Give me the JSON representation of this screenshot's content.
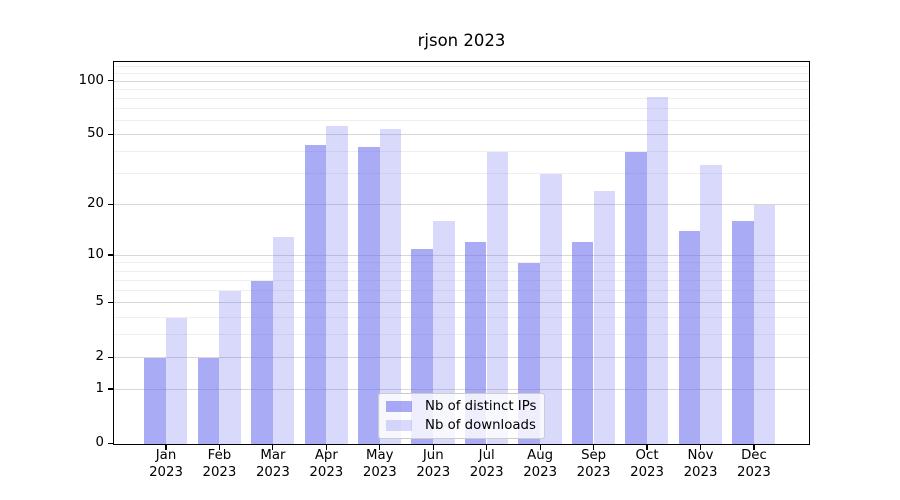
{
  "title": "rjson 2023",
  "chart_data": {
    "type": "bar",
    "title": "rjson 2023",
    "categories": [
      "Jan 2023",
      "Feb 2023",
      "Mar 2023",
      "Apr 2023",
      "May 2023",
      "Jun 2023",
      "Jul 2023",
      "Aug 2023",
      "Sep 2023",
      "Oct 2023",
      "Nov 2023",
      "Dec 2023"
    ],
    "series": [
      {
        "name": "Nb of distinct IPs",
        "values": [
          2,
          2,
          7,
          44,
          43,
          11,
          12,
          9,
          12,
          40,
          14,
          16
        ]
      },
      {
        "name": "Nb of downloads",
        "values": [
          4,
          6,
          13,
          56,
          54,
          16,
          40,
          30,
          24,
          82,
          34,
          20
        ]
      }
    ],
    "xlabel": "",
    "ylabel": "",
    "yscale": "log1p",
    "yticks": [
      0,
      1,
      2,
      5,
      10,
      20,
      50,
      100
    ],
    "minor_yticks": [
      3,
      4,
      6,
      7,
      8,
      9,
      30,
      40,
      60,
      70,
      80,
      90,
      110,
      120
    ],
    "ylim": [
      0,
      127
    ],
    "grid": "horizontal",
    "legend_position": "lower-center"
  },
  "colors": {
    "bar_base": "#6a6eee",
    "ips_fill": "rgba(106,110,238,0.58)",
    "downloads_fill": "rgba(106,110,238,0.26)",
    "grid_major": "#d7d7d7",
    "grid_minor": "#efefef",
    "axis_line": "#000000",
    "legend_border": "#cccccc",
    "legend_bg": "rgba(255,255,255,0.8)",
    "text": "#000000"
  }
}
